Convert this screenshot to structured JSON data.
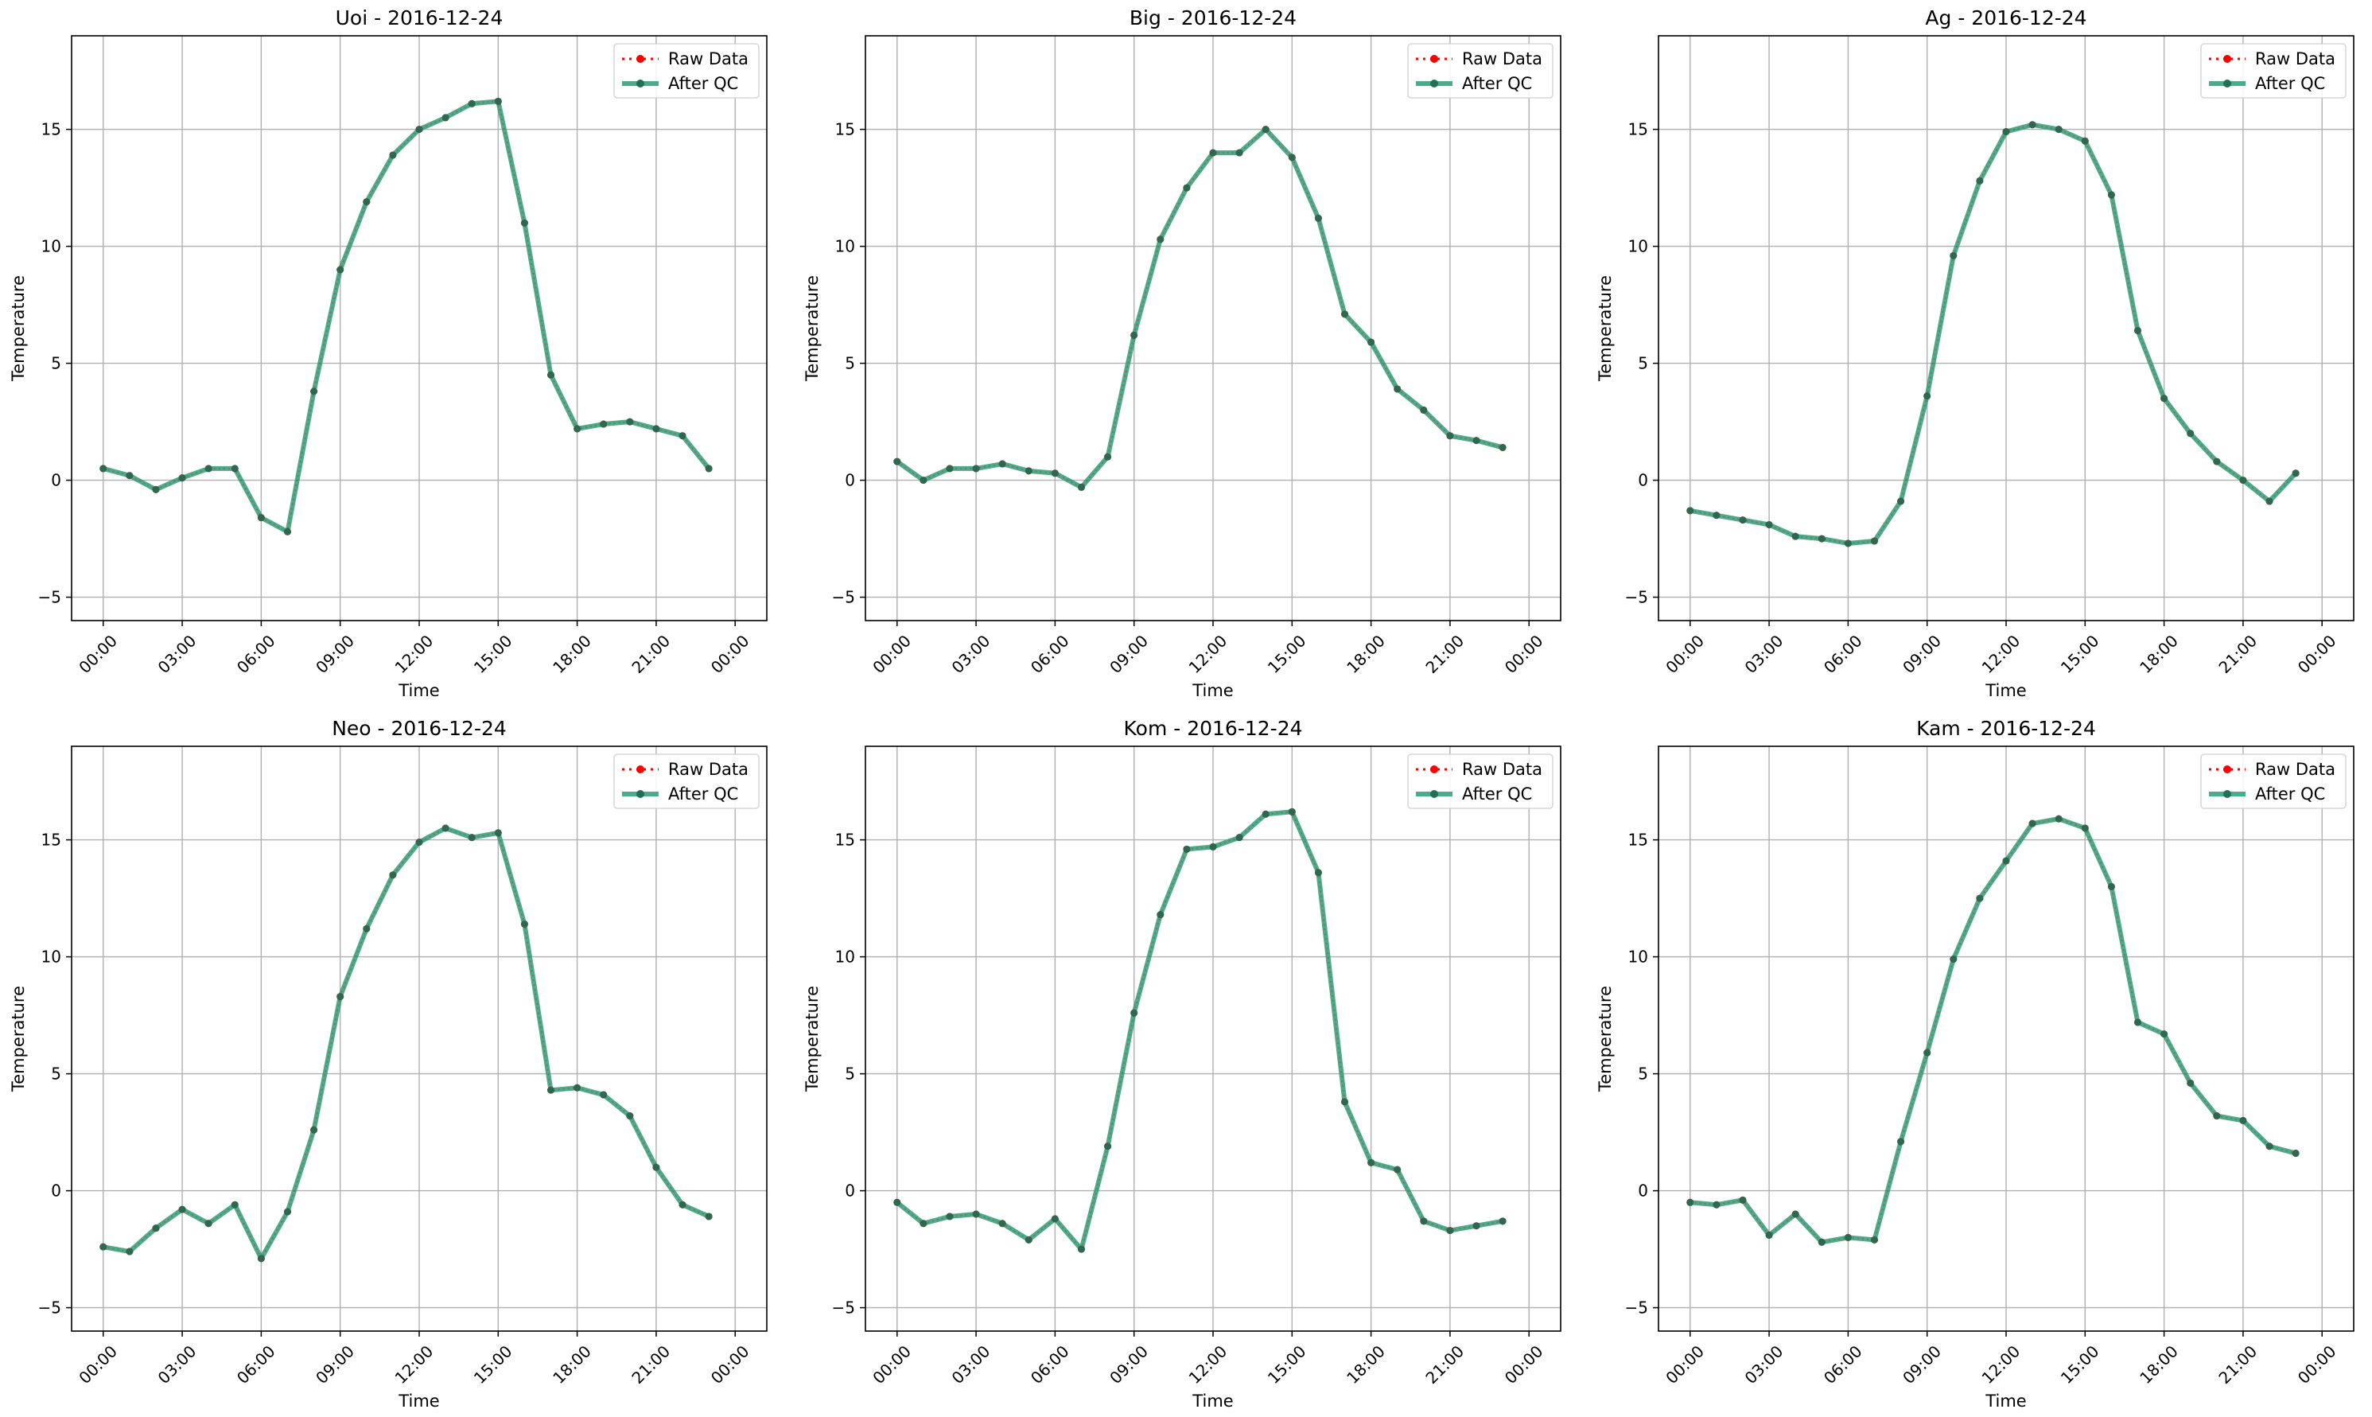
{
  "colors": {
    "raw": "#ff0000",
    "qc": "#2a9d75",
    "grid": "#b0b0b0",
    "frame": "#000000"
  },
  "legend": {
    "raw": "Raw Data",
    "qc": "After QC",
    "placement": "upper right"
  },
  "chart_data": [
    {
      "type": "line",
      "title": "Uoi - 2016-12-24",
      "xlabel": "Time",
      "ylabel": "Temperature",
      "xlim": [
        0,
        24
      ],
      "ylim": [
        -6,
        19
      ],
      "xticks": [
        0,
        3,
        6,
        9,
        12,
        15,
        18,
        21,
        24
      ],
      "xtick_labels": [
        "00:00",
        "03:00",
        "06:00",
        "09:00",
        "12:00",
        "15:00",
        "18:00",
        "21:00",
        "00:00"
      ],
      "yticks": [
        -5,
        0,
        5,
        10,
        15
      ],
      "ytick_labels": [
        "−5",
        "0",
        "5",
        "10",
        "15"
      ],
      "grid": true,
      "x": [
        0,
        1,
        2,
        3,
        4,
        5,
        6,
        7,
        8,
        9,
        10,
        11,
        12,
        13,
        14,
        15,
        16,
        17,
        18,
        19,
        20,
        21,
        22,
        23
      ],
      "series": [
        {
          "name": "Raw Data",
          "values": [
            0.5,
            0.2,
            -0.4,
            0.1,
            0.5,
            0.5,
            -1.6,
            -2.2,
            3.8,
            9.0,
            11.9,
            13.9,
            15.0,
            15.5,
            16.1,
            16.2,
            11.0,
            4.5,
            2.2,
            2.4,
            2.5,
            2.2,
            1.9,
            0.5
          ]
        },
        {
          "name": "After QC",
          "values": [
            0.5,
            0.2,
            -0.4,
            0.1,
            0.5,
            0.5,
            -1.6,
            -2.2,
            3.8,
            9.0,
            11.9,
            13.9,
            15.0,
            15.5,
            16.1,
            16.2,
            11.0,
            4.5,
            2.2,
            2.4,
            2.5,
            2.2,
            1.9,
            0.5
          ]
        }
      ]
    },
    {
      "type": "line",
      "title": "Big - 2016-12-24",
      "xlabel": "Time",
      "ylabel": "Temperature",
      "xlim": [
        0,
        24
      ],
      "ylim": [
        -6,
        19
      ],
      "xticks": [
        0,
        3,
        6,
        9,
        12,
        15,
        18,
        21,
        24
      ],
      "xtick_labels": [
        "00:00",
        "03:00",
        "06:00",
        "09:00",
        "12:00",
        "15:00",
        "18:00",
        "21:00",
        "00:00"
      ],
      "yticks": [
        -5,
        0,
        5,
        10,
        15
      ],
      "ytick_labels": [
        "−5",
        "0",
        "5",
        "10",
        "15"
      ],
      "grid": true,
      "x": [
        0,
        1,
        2,
        3,
        4,
        5,
        6,
        7,
        8,
        9,
        10,
        11,
        12,
        13,
        14,
        15,
        16,
        17,
        18,
        19,
        20,
        21,
        22,
        23
      ],
      "series": [
        {
          "name": "Raw Data",
          "values": [
            0.8,
            0.0,
            0.5,
            0.5,
            0.7,
            0.4,
            0.3,
            -0.3,
            1.0,
            6.2,
            10.3,
            12.5,
            14.0,
            14.0,
            15.0,
            13.8,
            11.2,
            7.1,
            5.9,
            3.9,
            3.0,
            1.9,
            1.7,
            1.4
          ]
        },
        {
          "name": "After QC",
          "values": [
            0.8,
            0.0,
            0.5,
            0.5,
            0.7,
            0.4,
            0.3,
            -0.3,
            1.0,
            6.2,
            10.3,
            12.5,
            14.0,
            14.0,
            15.0,
            13.8,
            11.2,
            7.1,
            5.9,
            3.9,
            3.0,
            1.9,
            1.7,
            1.4
          ]
        }
      ]
    },
    {
      "type": "line",
      "title": "Ag - 2016-12-24",
      "xlabel": "Time",
      "ylabel": "Temperature",
      "xlim": [
        0,
        24
      ],
      "ylim": [
        -6,
        19
      ],
      "xticks": [
        0,
        3,
        6,
        9,
        12,
        15,
        18,
        21,
        24
      ],
      "xtick_labels": [
        "00:00",
        "03:00",
        "06:00",
        "09:00",
        "12:00",
        "15:00",
        "18:00",
        "21:00",
        "00:00"
      ],
      "yticks": [
        -5,
        0,
        5,
        10,
        15
      ],
      "ytick_labels": [
        "−5",
        "0",
        "5",
        "10",
        "15"
      ],
      "grid": true,
      "x": [
        0,
        1,
        2,
        3,
        4,
        5,
        6,
        7,
        8,
        9,
        10,
        11,
        12,
        13,
        14,
        15,
        16,
        17,
        18,
        19,
        20,
        21,
        22,
        23
      ],
      "series": [
        {
          "name": "Raw Data",
          "values": [
            -1.3,
            -1.5,
            -1.7,
            -1.9,
            -2.4,
            -2.5,
            -2.7,
            -2.6,
            -0.9,
            3.6,
            9.6,
            12.8,
            14.9,
            15.2,
            15.0,
            14.5,
            12.2,
            6.4,
            3.5,
            2.0,
            0.8,
            0.0,
            -0.9,
            0.3
          ]
        },
        {
          "name": "After QC",
          "values": [
            -1.3,
            -1.5,
            -1.7,
            -1.9,
            -2.4,
            -2.5,
            -2.7,
            -2.6,
            -0.9,
            3.6,
            9.6,
            12.8,
            14.9,
            15.2,
            15.0,
            14.5,
            12.2,
            6.4,
            3.5,
            2.0,
            0.8,
            0.0,
            -0.9,
            0.3
          ]
        }
      ]
    },
    {
      "type": "line",
      "title": "Neo - 2016-12-24",
      "xlabel": "Time",
      "ylabel": "Temperature",
      "xlim": [
        0,
        24
      ],
      "ylim": [
        -6,
        19
      ],
      "xticks": [
        0,
        3,
        6,
        9,
        12,
        15,
        18,
        21,
        24
      ],
      "xtick_labels": [
        "00:00",
        "03:00",
        "06:00",
        "09:00",
        "12:00",
        "15:00",
        "18:00",
        "21:00",
        "00:00"
      ],
      "yticks": [
        -5,
        0,
        5,
        10,
        15
      ],
      "ytick_labels": [
        "−5",
        "0",
        "5",
        "10",
        "15"
      ],
      "grid": true,
      "x": [
        0,
        1,
        2,
        3,
        4,
        5,
        6,
        7,
        8,
        9,
        10,
        11,
        12,
        13,
        14,
        15,
        16,
        17,
        18,
        19,
        20,
        21,
        22,
        23
      ],
      "series": [
        {
          "name": "Raw Data",
          "values": [
            -2.4,
            -2.6,
            -1.6,
            -0.8,
            -1.4,
            -0.6,
            -2.9,
            -0.9,
            2.6,
            8.3,
            11.2,
            13.5,
            14.9,
            15.5,
            15.1,
            15.3,
            11.4,
            4.3,
            4.4,
            4.1,
            3.2,
            1.0,
            -0.6,
            -1.1
          ]
        },
        {
          "name": "After QC",
          "values": [
            -2.4,
            -2.6,
            -1.6,
            -0.8,
            -1.4,
            -0.6,
            -2.9,
            -0.9,
            2.6,
            8.3,
            11.2,
            13.5,
            14.9,
            15.5,
            15.1,
            15.3,
            11.4,
            4.3,
            4.4,
            4.1,
            3.2,
            1.0,
            -0.6,
            -1.1
          ]
        }
      ]
    },
    {
      "type": "line",
      "title": "Kom - 2016-12-24",
      "xlabel": "Time",
      "ylabel": "Temperature",
      "xlim": [
        0,
        24
      ],
      "ylim": [
        -6,
        19
      ],
      "xticks": [
        0,
        3,
        6,
        9,
        12,
        15,
        18,
        21,
        24
      ],
      "xtick_labels": [
        "00:00",
        "03:00",
        "06:00",
        "09:00",
        "12:00",
        "15:00",
        "18:00",
        "21:00",
        "00:00"
      ],
      "yticks": [
        -5,
        0,
        5,
        10,
        15
      ],
      "ytick_labels": [
        "−5",
        "0",
        "5",
        "10",
        "15"
      ],
      "grid": true,
      "x": [
        0,
        1,
        2,
        3,
        4,
        5,
        6,
        7,
        8,
        9,
        10,
        11,
        12,
        13,
        14,
        15,
        16,
        17,
        18,
        19,
        20,
        21,
        22,
        23
      ],
      "series": [
        {
          "name": "Raw Data",
          "values": [
            -0.5,
            -1.4,
            -1.1,
            -1.0,
            -1.4,
            -2.1,
            -1.2,
            -2.5,
            1.9,
            7.6,
            11.8,
            14.6,
            14.7,
            15.1,
            16.1,
            16.2,
            13.6,
            3.8,
            1.2,
            0.9,
            -1.3,
            -1.7,
            -1.5,
            -1.3
          ]
        },
        {
          "name": "After QC",
          "values": [
            -0.5,
            -1.4,
            -1.1,
            -1.0,
            -1.4,
            -2.1,
            -1.2,
            -2.5,
            1.9,
            7.6,
            11.8,
            14.6,
            14.7,
            15.1,
            16.1,
            16.2,
            13.6,
            3.8,
            1.2,
            0.9,
            -1.3,
            -1.7,
            -1.5,
            -1.3
          ]
        }
      ]
    },
    {
      "type": "line",
      "title": "Kam - 2016-12-24",
      "xlabel": "Time",
      "ylabel": "Temperature",
      "xlim": [
        0,
        24
      ],
      "ylim": [
        -6,
        19
      ],
      "xticks": [
        0,
        3,
        6,
        9,
        12,
        15,
        18,
        21,
        24
      ],
      "xtick_labels": [
        "00:00",
        "03:00",
        "06:00",
        "09:00",
        "12:00",
        "15:00",
        "18:00",
        "21:00",
        "00:00"
      ],
      "yticks": [
        -5,
        0,
        5,
        10,
        15
      ],
      "ytick_labels": [
        "−5",
        "0",
        "5",
        "10",
        "15"
      ],
      "grid": true,
      "x": [
        0,
        1,
        2,
        3,
        4,
        5,
        6,
        7,
        8,
        9,
        10,
        11,
        12,
        13,
        14,
        15,
        16,
        17,
        18,
        19,
        20,
        21,
        22,
        23
      ],
      "series": [
        {
          "name": "Raw Data",
          "values": [
            -0.5,
            -0.6,
            -0.4,
            -1.9,
            -1.0,
            -2.2,
            -2.0,
            -2.1,
            2.1,
            5.9,
            9.9,
            12.5,
            14.1,
            15.7,
            15.9,
            15.5,
            13.0,
            7.2,
            6.7,
            4.6,
            3.2,
            3.0,
            1.9,
            1.6
          ]
        },
        {
          "name": "After QC",
          "values": [
            -0.5,
            -0.6,
            -0.4,
            -1.9,
            -1.0,
            -2.2,
            -2.0,
            -2.1,
            2.1,
            5.9,
            9.9,
            12.5,
            14.1,
            15.7,
            15.9,
            15.5,
            13.0,
            7.2,
            6.7,
            4.6,
            3.2,
            3.0,
            1.9,
            1.6
          ]
        }
      ]
    }
  ]
}
